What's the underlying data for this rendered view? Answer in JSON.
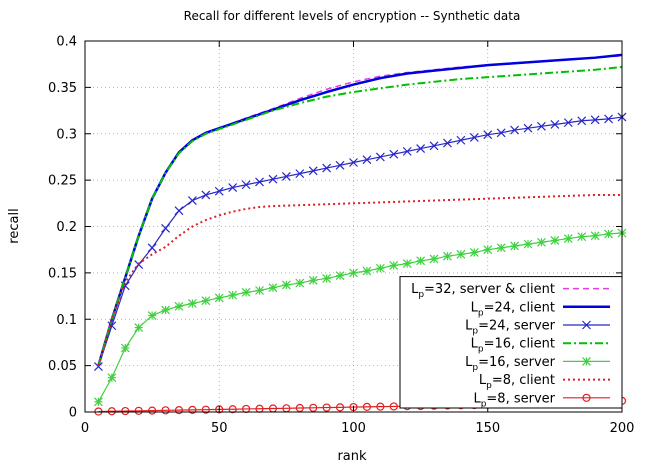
{
  "chart_data": {
    "type": "line",
    "title": "Recall for different levels of encryption -- Synthetic data",
    "xlabel": "rank",
    "ylabel": "recall",
    "xlim": [
      0,
      200
    ],
    "ylim": [
      0,
      0.4
    ],
    "xticks": [
      "0",
      "50",
      "100",
      "150",
      "200"
    ],
    "yticks": [
      "0",
      "0.05",
      "0.1",
      "0.15",
      "0.2",
      "0.25",
      "0.3",
      "0.35",
      "0.4"
    ],
    "grid": "dotted",
    "legend_position": "bottom-right",
    "series": [
      {
        "name": "Lp=32, server & client",
        "label_pre": "L",
        "label_sub": "p",
        "label_post": "=32, server & client",
        "color": "#e040e0",
        "dash": "dashed",
        "width": 1.5,
        "marker": "none",
        "x": [
          5,
          10,
          15,
          20,
          25,
          30,
          35,
          40,
          45,
          50,
          60,
          70,
          80,
          90,
          100,
          110,
          120,
          130,
          140,
          150,
          160,
          170,
          180,
          190,
          200
        ],
        "y": [
          0.05,
          0.1,
          0.145,
          0.19,
          0.23,
          0.258,
          0.28,
          0.293,
          0.301,
          0.306,
          0.317,
          0.327,
          0.338,
          0.348,
          0.356,
          0.362,
          0.366,
          0.369,
          0.372,
          0.374,
          0.376,
          0.378,
          0.38,
          0.382,
          0.384
        ]
      },
      {
        "name": "Lp=24, client",
        "label_pre": "L",
        "label_sub": "p",
        "label_post": "=24,  client",
        "color": "#0000e0",
        "dash": "solid",
        "width": 2.5,
        "marker": "none",
        "x": [
          5,
          10,
          15,
          20,
          25,
          30,
          35,
          40,
          45,
          50,
          60,
          70,
          80,
          90,
          100,
          110,
          120,
          130,
          140,
          150,
          160,
          170,
          180,
          190,
          200
        ],
        "y": [
          0.05,
          0.1,
          0.145,
          0.19,
          0.23,
          0.258,
          0.28,
          0.293,
          0.301,
          0.306,
          0.316,
          0.326,
          0.336,
          0.345,
          0.353,
          0.36,
          0.365,
          0.368,
          0.371,
          0.374,
          0.376,
          0.378,
          0.38,
          0.382,
          0.385
        ]
      },
      {
        "name": "Lp=24, server",
        "label_pre": "L",
        "label_sub": "p",
        "label_post": "=24,   server",
        "color": "#2828c8",
        "dash": "solid",
        "width": 1.2,
        "marker": "x",
        "x": [
          5,
          10,
          15,
          20,
          25,
          30,
          35,
          40,
          45,
          50,
          55,
          60,
          65,
          70,
          75,
          80,
          85,
          90,
          95,
          100,
          105,
          110,
          115,
          120,
          125,
          130,
          135,
          140,
          145,
          150,
          155,
          160,
          165,
          170,
          175,
          180,
          185,
          190,
          195,
          200
        ],
        "y": [
          0.049,
          0.093,
          0.136,
          0.159,
          0.177,
          0.198,
          0.217,
          0.228,
          0.234,
          0.238,
          0.242,
          0.245,
          0.248,
          0.251,
          0.254,
          0.257,
          0.26,
          0.263,
          0.266,
          0.269,
          0.272,
          0.275,
          0.278,
          0.281,
          0.284,
          0.287,
          0.29,
          0.293,
          0.296,
          0.299,
          0.301,
          0.304,
          0.306,
          0.308,
          0.31,
          0.312,
          0.314,
          0.315,
          0.316,
          0.318
        ]
      },
      {
        "name": "Lp=16, client",
        "label_pre": "L",
        "label_sub": "p",
        "label_post": "=16, client",
        "color": "#00c000",
        "dash": "dashdot",
        "width": 2,
        "marker": "none",
        "x": [
          5,
          10,
          15,
          20,
          25,
          30,
          35,
          40,
          45,
          50,
          60,
          70,
          80,
          90,
          100,
          110,
          120,
          130,
          140,
          150,
          160,
          170,
          180,
          190,
          200
        ],
        "y": [
          0.05,
          0.1,
          0.145,
          0.19,
          0.23,
          0.258,
          0.279,
          0.292,
          0.3,
          0.305,
          0.315,
          0.325,
          0.333,
          0.34,
          0.345,
          0.349,
          0.353,
          0.356,
          0.359,
          0.361,
          0.363,
          0.365,
          0.367,
          0.369,
          0.372
        ]
      },
      {
        "name": "Lp=16, server",
        "label_pre": "L",
        "label_sub": "p",
        "label_post": "=16, server",
        "color": "#40d040",
        "dash": "solid",
        "width": 1.2,
        "marker": "asterisk",
        "x": [
          5,
          10,
          15,
          20,
          25,
          30,
          35,
          40,
          45,
          50,
          55,
          60,
          65,
          70,
          75,
          80,
          85,
          90,
          95,
          100,
          105,
          110,
          115,
          120,
          125,
          130,
          135,
          140,
          145,
          150,
          155,
          160,
          165,
          170,
          175,
          180,
          185,
          190,
          195,
          200
        ],
        "y": [
          0.011,
          0.037,
          0.069,
          0.091,
          0.104,
          0.11,
          0.114,
          0.117,
          0.12,
          0.123,
          0.126,
          0.129,
          0.131,
          0.134,
          0.137,
          0.139,
          0.142,
          0.144,
          0.147,
          0.15,
          0.152,
          0.155,
          0.158,
          0.16,
          0.163,
          0.165,
          0.168,
          0.17,
          0.172,
          0.175,
          0.177,
          0.179,
          0.181,
          0.183,
          0.185,
          0.187,
          0.189,
          0.19,
          0.192,
          0.193
        ]
      },
      {
        "name": "Lp=8, client",
        "label_pre": "L",
        "label_sub": "p",
        "label_post": "=8, client",
        "color": "#e02020",
        "dash": "dotted",
        "width": 2,
        "marker": "none",
        "x": [
          5,
          10,
          15,
          20,
          25,
          30,
          35,
          40,
          45,
          50,
          55,
          60,
          65,
          70,
          80,
          90,
          100,
          110,
          120,
          130,
          140,
          150,
          160,
          170,
          180,
          190,
          200
        ],
        "y": [
          0.05,
          0.1,
          0.14,
          0.16,
          0.17,
          0.178,
          0.19,
          0.2,
          0.207,
          0.212,
          0.216,
          0.219,
          0.221,
          0.222,
          0.223,
          0.224,
          0.225,
          0.226,
          0.227,
          0.228,
          0.229,
          0.23,
          0.231,
          0.232,
          0.233,
          0.234,
          0.234
        ]
      },
      {
        "name": "Lp=8, server",
        "label_pre": "L",
        "label_sub": "p",
        "label_post": "=8, server",
        "color": "#e02020",
        "dash": "solid",
        "width": 1.2,
        "marker": "circle",
        "x": [
          5,
          10,
          15,
          20,
          25,
          30,
          35,
          40,
          45,
          50,
          55,
          60,
          65,
          70,
          75,
          80,
          85,
          90,
          95,
          100,
          105,
          110,
          115,
          120,
          125,
          130,
          135,
          140,
          145,
          150,
          155,
          160,
          165,
          170,
          175,
          180,
          185,
          190,
          195,
          200
        ],
        "y": [
          0.0005,
          0.0008,
          0.001,
          0.0013,
          0.0015,
          0.0018,
          0.002,
          0.0023,
          0.0025,
          0.0028,
          0.003,
          0.0033,
          0.0035,
          0.0038,
          0.004,
          0.0043,
          0.0045,
          0.0048,
          0.005,
          0.0053,
          0.0055,
          0.0058,
          0.006,
          0.0063,
          0.0065,
          0.0068,
          0.007,
          0.0073,
          0.0075,
          0.0078,
          0.008,
          0.0083,
          0.0085,
          0.0088,
          0.009,
          0.0093,
          0.0095,
          0.0098,
          0.0105,
          0.012
        ]
      }
    ]
  }
}
